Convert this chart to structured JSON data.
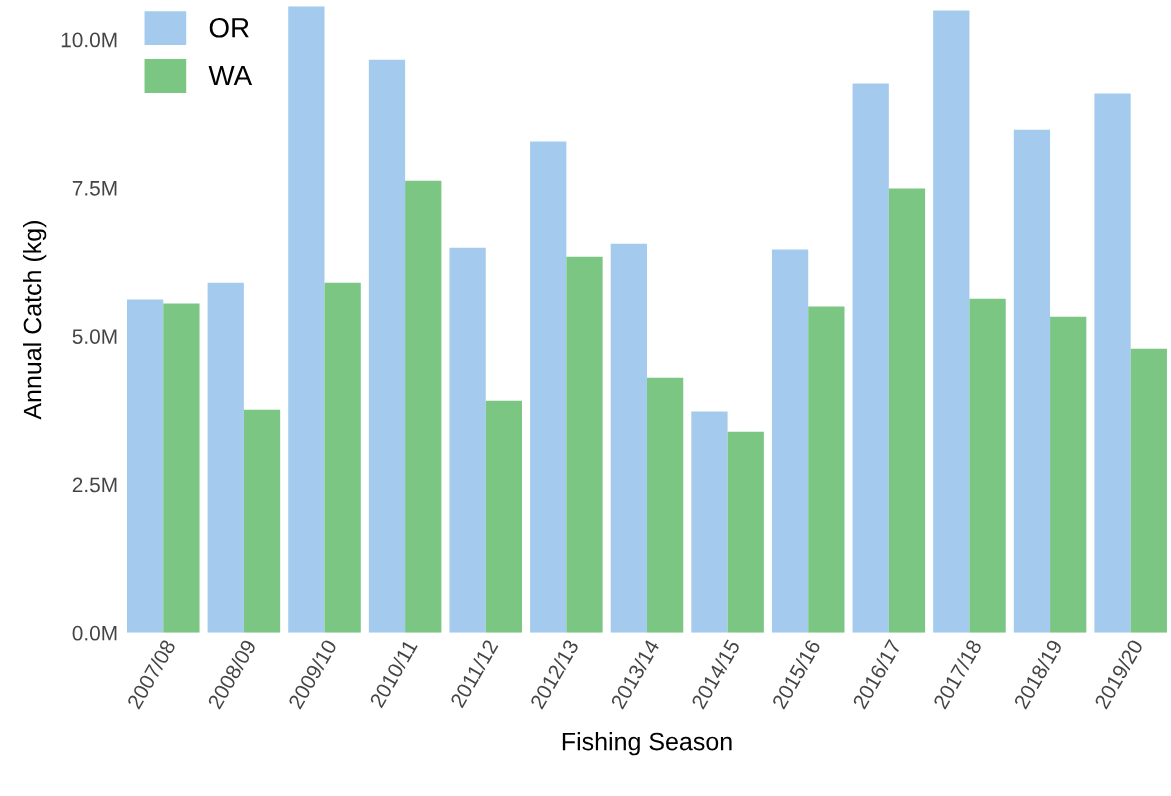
{
  "chart_data": {
    "type": "bar",
    "xlabel": "Fishing Season",
    "ylabel": "Annual Catch (kg)",
    "categories": [
      "2007/08",
      "2008/09",
      "2009/10",
      "2010/11",
      "2011/12",
      "2012/13",
      "2013/14",
      "2014/15",
      "2015/16",
      "2016/17",
      "2017/18",
      "2018/19",
      "2019/20"
    ],
    "series": [
      {
        "name": "OR",
        "color": "#a4cbed",
        "values": [
          5.62,
          5.9,
          10.56,
          9.66,
          6.49,
          8.28,
          6.56,
          3.73,
          6.46,
          9.26,
          10.49,
          8.48,
          9.09
        ]
      },
      {
        "name": "WA",
        "color": "#7bc683",
        "values": [
          5.55,
          3.76,
          5.9,
          7.62,
          3.91,
          6.34,
          4.3,
          3.39,
          5.5,
          7.49,
          5.63,
          5.33,
          4.79
        ]
      }
    ],
    "ylim": [
      0,
      10.56
    ],
    "yticks": [
      {
        "value": 0,
        "label": "0.0M"
      },
      {
        "value": 2.5,
        "label": "2.5M"
      },
      {
        "value": 5,
        "label": "5.0M"
      },
      {
        "value": 7.5,
        "label": "7.5M"
      },
      {
        "value": 10,
        "label": "10.0M"
      }
    ],
    "legend": "top left",
    "grid": false
  }
}
